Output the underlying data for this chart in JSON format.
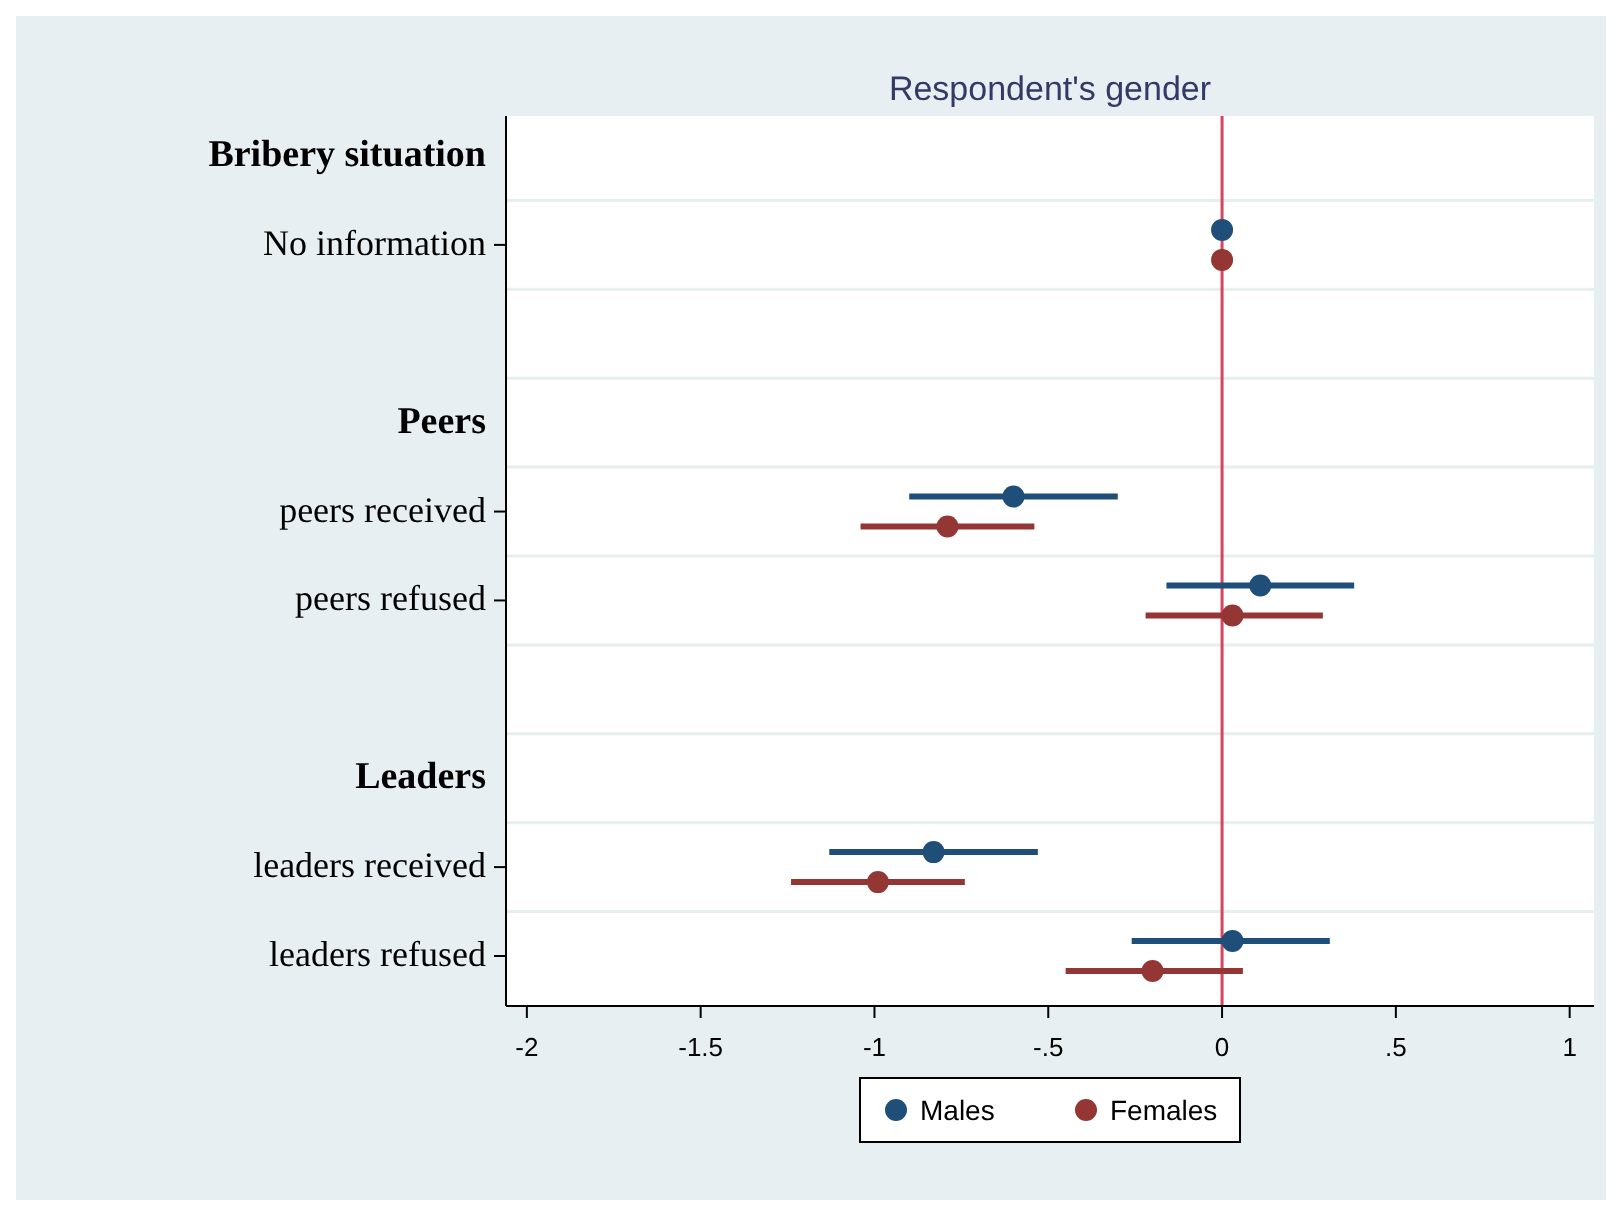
{
  "chart_data": {
    "type": "scatter",
    "orientation": "horizontal",
    "title": "Respondent's gender",
    "categories": [
      "Bribery situation",
      "No information",
      null,
      "Peers",
      "peers received",
      "peers refused",
      null,
      "Leaders",
      "leaders received",
      "leaders refused"
    ],
    "series": [
      {
        "name": "Males",
        "color": "#1f4e79",
        "values": [
          null,
          0,
          null,
          null,
          -0.6,
          0.11,
          null,
          null,
          -0.83,
          0.03
        ],
        "errors": [
          null,
          null,
          null,
          null,
          [
            -0.9,
            -0.3
          ],
          [
            -0.16,
            0.38
          ],
          null,
          null,
          [
            -1.13,
            -0.53
          ],
          [
            -0.26,
            0.31
          ]
        ]
      },
      {
        "name": "Females",
        "color": "#943634",
        "values": [
          null,
          0,
          null,
          null,
          -0.79,
          0.03,
          null,
          null,
          -0.99,
          -0.2
        ],
        "errors": [
          null,
          null,
          null,
          null,
          [
            -1.04,
            -0.54
          ],
          [
            -0.22,
            0.29
          ],
          null,
          null,
          [
            -1.24,
            -0.74
          ],
          [
            -0.45,
            0.06
          ]
        ]
      }
    ],
    "xlim": [
      -2.06,
      1.07
    ],
    "xticks": [
      -2,
      {
        "value": -1.5,
        "label": "-1.5"
      },
      -1,
      {
        "value": -0.5,
        "label": "-.5"
      },
      0,
      {
        "value": 0.5,
        "label": ".5"
      },
      1
    ],
    "ref_lines": [
      {
        "axis": "x",
        "value": 0,
        "color": "#d6455e"
      }
    ],
    "grid": "y",
    "legend": "bottom",
    "marker": "circle"
  }
}
